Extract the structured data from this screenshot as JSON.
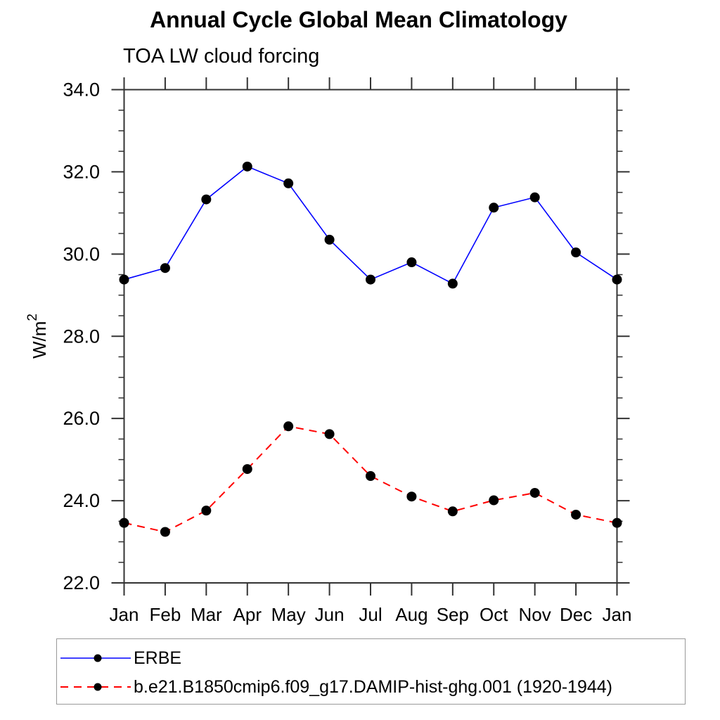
{
  "chart_data": {
    "type": "line",
    "title": "Annual Cycle Global Mean Climatology",
    "subtitle": "TOA LW cloud forcing",
    "ylabel_base": "W/m",
    "ylabel_exponent": "2",
    "categories": [
      "Jan",
      "Feb",
      "Mar",
      "Apr",
      "May",
      "Jun",
      "Jul",
      "Aug",
      "Sep",
      "Oct",
      "Nov",
      "Dec",
      "Jan"
    ],
    "ylim": [
      22.0,
      34.0
    ],
    "y_tick_labels": [
      "22.0",
      "24.0",
      "26.0",
      "28.0",
      "30.0",
      "32.0",
      "34.0"
    ],
    "y_major_ticks": [
      22.0,
      24.0,
      26.0,
      28.0,
      30.0,
      32.0,
      34.0
    ],
    "y_minor_step": 0.5,
    "grid": false,
    "legend_position": "bottom-left-box",
    "series": [
      {
        "name": "ERBE",
        "color": "#0000ff",
        "line_style": "solid",
        "line_width": 1.6,
        "marker": "filled-circle",
        "marker_color": "#000000",
        "values": [
          29.38,
          29.66,
          31.33,
          32.13,
          31.72,
          30.35,
          29.38,
          29.8,
          29.28,
          31.13,
          31.38,
          30.04,
          29.38
        ]
      },
      {
        "name": "b.e21.B1850cmip6.f09_g17.DAMIP-hist-ghg.001 (1920-1944)",
        "color": "#ff0000",
        "line_style": "dashed",
        "line_width": 2,
        "marker": "filled-circle",
        "marker_color": "#000000",
        "values": [
          23.46,
          23.24,
          23.76,
          24.77,
          25.81,
          25.62,
          24.6,
          24.1,
          23.74,
          24.01,
          24.19,
          23.66,
          23.46
        ]
      }
    ]
  },
  "colors": {
    "axis": "#333333",
    "text": "#000000",
    "legend_border": "#999999",
    "background": "#ffffff"
  }
}
